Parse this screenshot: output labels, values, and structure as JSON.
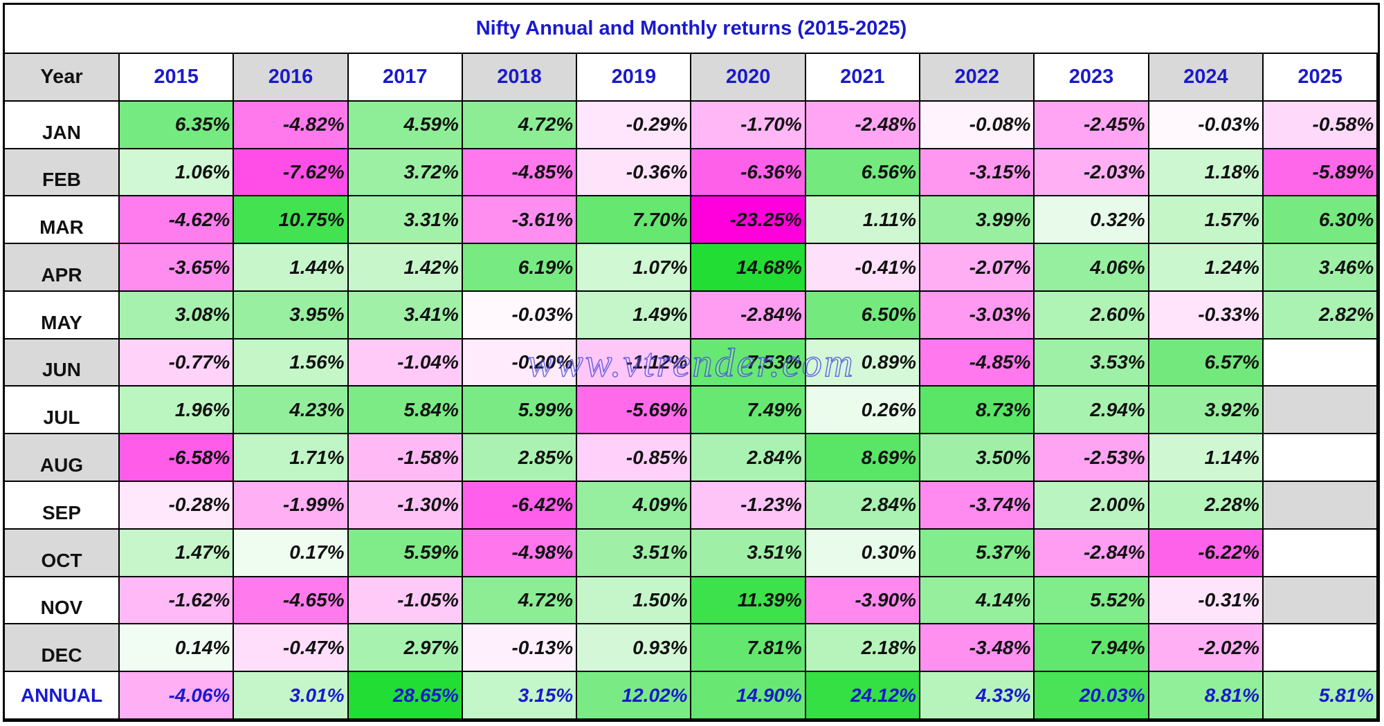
{
  "title": "Nifty Annual and Monthly returns (2015-2025)",
  "watermark": "www.vtrender.com",
  "chart_data": {
    "type": "table",
    "header_label": "Year",
    "years": [
      "2015",
      "2016",
      "2017",
      "2018",
      "2019",
      "2020",
      "2021",
      "2022",
      "2023",
      "2024",
      "2025"
    ],
    "months": [
      "JAN",
      "FEB",
      "MAR",
      "APR",
      "MAY",
      "JUN",
      "JUL",
      "AUG",
      "SEP",
      "OCT",
      "NOV",
      "DEC"
    ],
    "monthly_returns": [
      [
        6.35,
        -4.82,
        4.59,
        4.72,
        -0.29,
        -1.7,
        -2.48,
        -0.08,
        -2.45,
        -0.03,
        -0.58
      ],
      [
        1.06,
        -7.62,
        3.72,
        -4.85,
        -0.36,
        -6.36,
        6.56,
        -3.15,
        -2.03,
        1.18,
        -5.89
      ],
      [
        -4.62,
        10.75,
        3.31,
        -3.61,
        7.7,
        -23.25,
        1.11,
        3.99,
        0.32,
        1.57,
        6.3
      ],
      [
        -3.65,
        1.44,
        1.42,
        6.19,
        1.07,
        14.68,
        -0.41,
        -2.07,
        4.06,
        1.24,
        3.46
      ],
      [
        3.08,
        3.95,
        3.41,
        -0.03,
        1.49,
        -2.84,
        6.5,
        -3.03,
        2.6,
        -0.33,
        2.82
      ],
      [
        -0.77,
        1.56,
        -1.04,
        -0.2,
        -1.12,
        7.53,
        0.89,
        -4.85,
        3.53,
        6.57,
        null
      ],
      [
        1.96,
        4.23,
        5.84,
        5.99,
        -5.69,
        7.49,
        0.26,
        8.73,
        2.94,
        3.92,
        null
      ],
      [
        -6.58,
        1.71,
        -1.58,
        2.85,
        -0.85,
        2.84,
        8.69,
        3.5,
        -2.53,
        1.14,
        null
      ],
      [
        -0.28,
        -1.99,
        -1.3,
        -6.42,
        4.09,
        -1.23,
        2.84,
        -3.74,
        2.0,
        2.28,
        null
      ],
      [
        1.47,
        0.17,
        5.59,
        -4.98,
        3.51,
        3.51,
        0.3,
        5.37,
        -2.84,
        -6.22,
        null
      ],
      [
        -1.62,
        -4.65,
        -1.05,
        4.72,
        1.5,
        11.39,
        -3.9,
        4.14,
        5.52,
        -0.31,
        null
      ],
      [
        0.14,
        -0.47,
        2.97,
        -0.13,
        0.93,
        7.81,
        2.18,
        -3.48,
        7.94,
        -2.02,
        null
      ]
    ],
    "annual_label": "ANNUAL",
    "annual_returns": [
      -4.06,
      3.01,
      28.65,
      3.15,
      12.02,
      14.9,
      24.12,
      4.33,
      20.03,
      8.81,
      5.81
    ],
    "value_suffix": "%",
    "colors": {
      "title": "#1a1acc",
      "header_grey": "#d9d9d9",
      "positive_max": "#22dd33",
      "negative_max": "#ff00dd",
      "neutral": "#ffffff"
    }
  }
}
